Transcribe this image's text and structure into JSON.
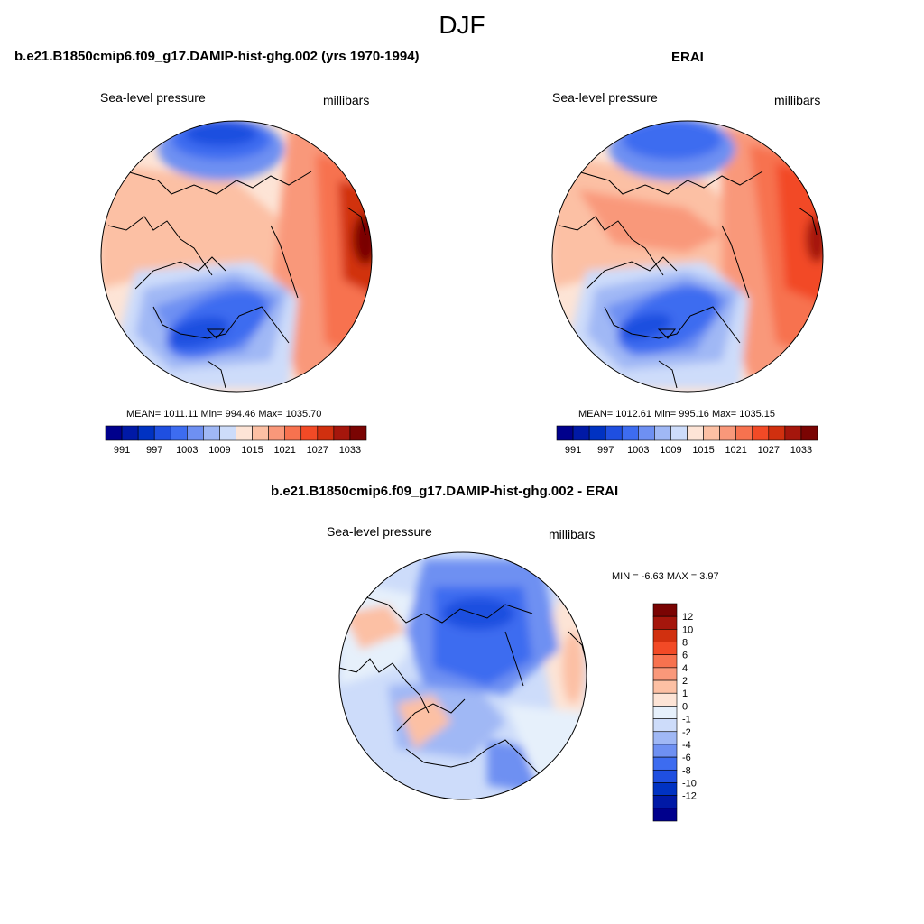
{
  "title": "DJF",
  "panels": [
    {
      "title": "b.e21.B1850cmip6.f09_g17.DAMIP-hist-ghg.002 (yrs 1970-1994)",
      "left_label": "Sea-level pressure",
      "right_label": "millibars",
      "stats": "MEAN= 1011.11  Min= 994.46  Max= 1035.70"
    },
    {
      "title": "ERAI",
      "left_label": "Sea-level pressure",
      "right_label": "millibars",
      "stats": "MEAN= 1012.61  Min= 995.16  Max= 1035.15"
    },
    {
      "title": "b.e21.B1850cmip6.f09_g17.DAMIP-hist-ghg.002 - ERAI",
      "left_label": "Sea-level pressure",
      "right_label": "millibars",
      "stats": "MIN =  -6.63 MAX =   3.97"
    }
  ],
  "colorbar_abs": {
    "labels": [
      "991",
      "997",
      "1003",
      "1009",
      "1015",
      "1021",
      "1027",
      "1033"
    ],
    "colors": [
      "#00008c",
      "#0019a6",
      "#0032c2",
      "#1f4fe0",
      "#3d6cf0",
      "#6e90f2",
      "#a0b8f5",
      "#cddcfa",
      "#fde4d6",
      "#fcc0a4",
      "#f9987a",
      "#f7724f",
      "#f24a26",
      "#d1300f",
      "#a5160c",
      "#7a0403"
    ]
  },
  "colorbar_diff": {
    "labels": [
      "12",
      "10",
      "8",
      "6",
      "4",
      "2",
      "1",
      "0",
      "-1",
      "-2",
      "-4",
      "-6",
      "-8",
      "-10",
      "-12"
    ],
    "colors": [
      "#7a0403",
      "#a5160c",
      "#d1300f",
      "#f24a26",
      "#f7724f",
      "#f9987a",
      "#fcc0a4",
      "#fde4d6",
      "#e6f0fb",
      "#cddcfa",
      "#a0b8f5",
      "#6e90f2",
      "#3d6cf0",
      "#1f4fe0",
      "#0032c2",
      "#0019a6",
      "#00008c"
    ]
  }
}
